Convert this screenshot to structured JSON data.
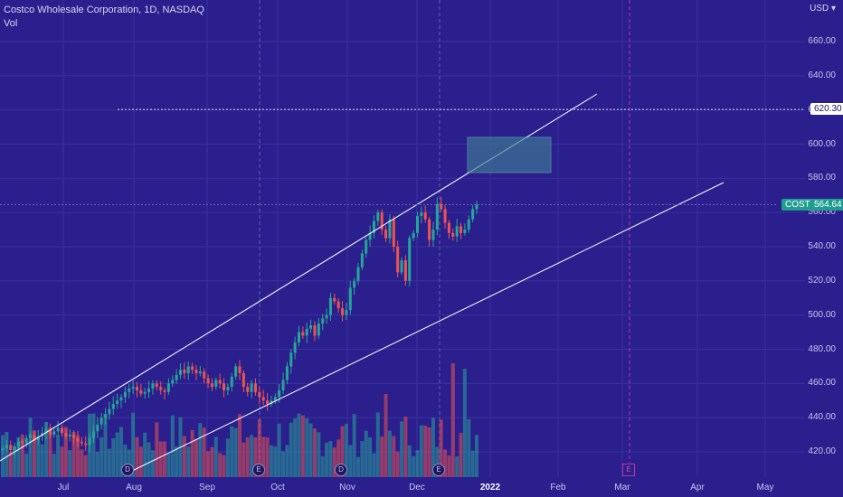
{
  "legend": {
    "symbol_title": "Costco Wholesale Corporation, 1D, NASDAQ",
    "volume_label": "Vol"
  },
  "currency": "USD",
  "price_axis": [
    {
      "v": 660,
      "label": "660.00"
    },
    {
      "v": 640,
      "label": "640.00"
    },
    {
      "v": 620,
      "label": "620.00"
    },
    {
      "v": 600,
      "label": "600.00"
    },
    {
      "v": 580,
      "label": "580.00"
    },
    {
      "v": 560,
      "label": "560.00"
    },
    {
      "v": 540,
      "label": "540.00"
    },
    {
      "v": 520,
      "label": "520.00"
    },
    {
      "v": 500,
      "label": "500.00"
    },
    {
      "v": 480,
      "label": "480.00"
    },
    {
      "v": 460,
      "label": "460.00"
    },
    {
      "v": 440,
      "label": "440.00"
    },
    {
      "v": 420,
      "label": "420.00"
    }
  ],
  "time_axis": [
    {
      "label": "Jul",
      "bold": false
    },
    {
      "label": "Aug",
      "bold": false
    },
    {
      "label": "Sep",
      "bold": false
    },
    {
      "label": "Oct",
      "bold": false
    },
    {
      "label": "Nov",
      "bold": false
    },
    {
      "label": "Dec",
      "bold": false
    },
    {
      "label": "2022",
      "bold": true
    },
    {
      "label": "Feb",
      "bold": false
    },
    {
      "label": "Mar",
      "bold": false
    },
    {
      "label": "Apr",
      "bold": false
    },
    {
      "label": "May",
      "bold": false
    }
  ],
  "badges": {
    "level_price": "620.30",
    "ticker": "COST",
    "last_price": "564.64"
  },
  "events": [
    {
      "kind": "dividend",
      "label": "D"
    },
    {
      "kind": "earnings",
      "label": "E"
    },
    {
      "kind": "dividend",
      "label": "D"
    },
    {
      "kind": "earnings",
      "label": "E"
    },
    {
      "kind": "upcoming-earnings",
      "label": "E"
    }
  ],
  "colors": {
    "background": "#2a1f8c",
    "up": "#26a69a",
    "down": "#ef5350",
    "grid": "#3a30a0",
    "accent": "#1f9e8f"
  },
  "chart_data": {
    "type": "candlestick",
    "symbol": "COST",
    "interval": "1D",
    "exchange": "NASDAQ",
    "ylim": [
      410,
      675
    ],
    "last_close": 564.64,
    "horizontal_level": 620.3,
    "series": [
      {
        "month": "Jul",
        "closes": [
          422,
          424,
          421,
          423,
          426,
          425,
          428,
          430,
          427,
          429,
          431,
          433,
          430,
          432,
          434,
          431,
          429,
          430,
          428,
          426,
          425
        ]
      },
      {
        "month": "Aug",
        "closes": [
          424,
          428,
          432,
          436,
          440,
          442,
          445,
          448,
          450,
          452,
          455,
          457,
          458,
          456,
          454,
          455,
          457,
          460,
          458,
          456,
          455
        ]
      },
      {
        "month": "Sep",
        "closes": [
          460,
          462,
          465,
          468,
          466,
          470,
          468,
          466,
          467,
          463,
          460,
          458,
          462,
          460,
          456,
          458,
          464,
          470,
          466,
          458,
          455
        ]
      },
      {
        "month": "Oct",
        "closes": [
          460,
          455,
          452,
          450,
          448,
          450,
          452,
          456,
          462,
          470,
          478,
          484,
          490,
          488,
          492,
          494,
          488,
          495,
          498,
          500
        ]
      },
      {
        "month": "Nov",
        "closes": [
          510,
          508,
          504,
          500,
          503,
          516,
          520,
          528,
          536,
          544,
          548,
          555,
          560,
          550,
          545,
          556,
          540,
          525,
          532,
          520
        ]
      },
      {
        "month": "Dec",
        "closes": [
          545,
          548,
          558,
          560,
          556,
          544,
          550,
          565,
          562,
          554,
          548,
          546,
          552,
          548,
          550,
          556,
          562,
          564.64
        ]
      }
    ]
  }
}
